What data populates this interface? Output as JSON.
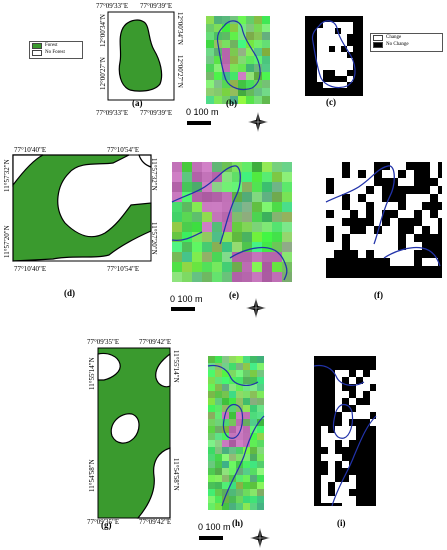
{
  "colors": {
    "forest": "#3a9a2e",
    "nonforest": "#ffffff",
    "change": "#ffffff",
    "nochange": "#000000",
    "boundary": "#2233aa"
  },
  "legend_a": {
    "items": [
      {
        "label": "Forest",
        "swatch": "forest"
      },
      {
        "label": "No Forest",
        "swatch": "nonforest"
      }
    ]
  },
  "legend_c": {
    "items": [
      {
        "label": "Change",
        "swatch": "change"
      },
      {
        "label": "No Change",
        "swatch": "nochange"
      }
    ]
  },
  "row1": {
    "top_left": "77°09'33\"E",
    "top_right": "77°09'39\"E",
    "bottom_left": "77°09'33\"E",
    "bottom_right": "77°09'39\"E",
    "left_top": "12°00'34\"N",
    "left_bottom": "12°00'27\"N",
    "right_top": "12°00'34\"N",
    "right_bottom": "12°00'27\"N",
    "labels": [
      "(a)",
      "(b)",
      "(c)"
    ],
    "scale": "0   100 m"
  },
  "row2": {
    "top_left": "77°10'40\"E",
    "top_right": "77°10'54\"E",
    "bottom_left": "77°10'40\"E",
    "bottom_right": "77°10'54\"E",
    "left_top": "11°57'32\"N",
    "left_bottom": "11°57'20\"N",
    "right_top": "11°57'32\"N",
    "right_bottom": "11°57'20\"N",
    "labels": [
      "(d)",
      "(e)",
      "(f)"
    ],
    "scale": "0   100 m"
  },
  "row3": {
    "top_left": "77°09'35\"E",
    "top_right": "77°09'42\"E",
    "bottom_left": "77°09'35\"E",
    "bottom_right": "77°09'42\"E",
    "left_top": "11°55'14\"N",
    "left_bottom": "11°54'58\"N",
    "right_top": "11°55'14\"N",
    "right_bottom": "11°54'58\"N",
    "labels": [
      "(g)",
      "(h)",
      "(i)"
    ],
    "scale": "0   100 m"
  },
  "north_symbol": "N"
}
